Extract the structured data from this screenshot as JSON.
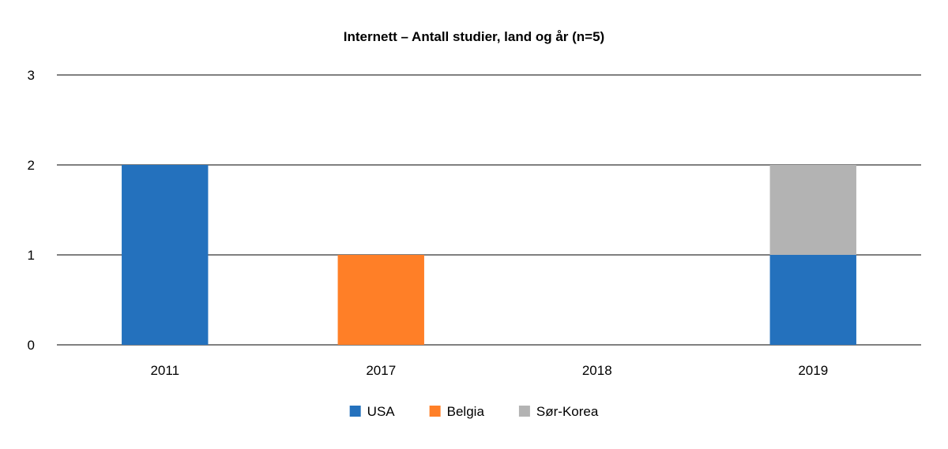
{
  "chart_data": {
    "type": "bar",
    "stacked": true,
    "title": "Internett – Antall studier, land og år (n=5)",
    "xlabel": "",
    "ylabel": "",
    "categories": [
      "2011",
      "2017",
      "2018",
      "2019"
    ],
    "series": [
      {
        "name": "USA",
        "values": [
          2,
          0,
          0,
          1
        ],
        "color": "#2471bd"
      },
      {
        "name": "Belgia",
        "values": [
          0,
          1,
          0,
          0
        ],
        "color": "#ff7f27"
      },
      {
        "name": "Sør-Korea",
        "values": [
          0,
          0,
          0,
          1
        ],
        "color": "#b3b3b3"
      }
    ],
    "ylim": [
      0,
      3
    ],
    "yticks": [
      0,
      1,
      2,
      3
    ],
    "grid": true,
    "legend": "bottom-center"
  }
}
